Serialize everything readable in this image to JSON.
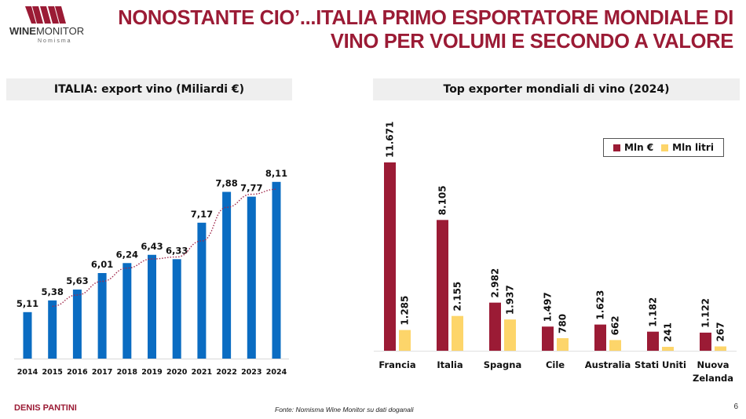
{
  "logo": {
    "brand_bold": "WINE",
    "brand_light": "MONITOR",
    "sub": "Nomisma"
  },
  "title": {
    "line1": "NONOSTANTE CIO’...ITALIA PRIMO ESPORTATORE MONDIALE DI",
    "line2": "VINO PER VOLUMI E SECONDO A VALORE"
  },
  "colors": {
    "brand": "#9b1b35",
    "bar_blue": "#0a6cc2",
    "trend_line": "#a0284a",
    "value_red": "#9b1b35",
    "volume_yellow": "#fdd56a"
  },
  "footer": {
    "author": "DENIS PANTINI",
    "source": "Fonte: Nomisma Wine Monitor su dati doganali",
    "page": "6"
  },
  "chart_data": [
    {
      "type": "bar",
      "title": "ITALIA: export vino (Miliardi €)",
      "categories": [
        "2014",
        "2015",
        "2016",
        "2017",
        "2018",
        "2019",
        "2020",
        "2021",
        "2022",
        "2023",
        "2024"
      ],
      "values": [
        5.11,
        5.38,
        5.63,
        6.01,
        6.24,
        6.43,
        6.33,
        7.17,
        7.88,
        7.77,
        8.11
      ],
      "labels": [
        "5,11",
        "5,38",
        "5,63",
        "6,01",
        "6,24",
        "6,43",
        "6,33",
        "7,17",
        "7,88",
        "7,77",
        "8,11"
      ],
      "trendline": {
        "type": "moving-average",
        "period": 2,
        "style": "dotted"
      },
      "xlabel": "",
      "ylabel": "",
      "ylim": [
        4.04,
        8.4
      ],
      "grid": false,
      "legend": "none"
    },
    {
      "type": "bar",
      "title": "Top exporter mondiali di vino (2024)",
      "categories": [
        "Francia",
        "Italia",
        "Spagna",
        "Cile",
        "Australia",
        "Stati Uniti",
        "Nuova Zelanda"
      ],
      "category_lines": [
        [
          "Francia"
        ],
        [
          "Italia"
        ],
        [
          "Spagna"
        ],
        [
          "Cile"
        ],
        [
          "Australia"
        ],
        [
          "Stati Uniti"
        ],
        [
          "Nuova",
          "Zelanda"
        ]
      ],
      "series": [
        {
          "name": "Mln €",
          "values": [
            11671,
            8105,
            2982,
            1497,
            1623,
            1182,
            1122
          ],
          "labels": [
            "11.671",
            "8.105",
            "2.982",
            "1.497",
            "1.623",
            "1.182",
            "1.122"
          ]
        },
        {
          "name": "Mln litri",
          "values": [
            1285,
            2155,
            1937,
            780,
            662,
            241,
            267
          ],
          "labels": [
            "1.285",
            "2.155",
            "1.937",
            "780",
            "662",
            "241",
            "267"
          ]
        }
      ],
      "xlabel": "",
      "ylabel": "",
      "ylim": [
        0,
        12500
      ],
      "grid": false,
      "legend": "top-right"
    }
  ]
}
